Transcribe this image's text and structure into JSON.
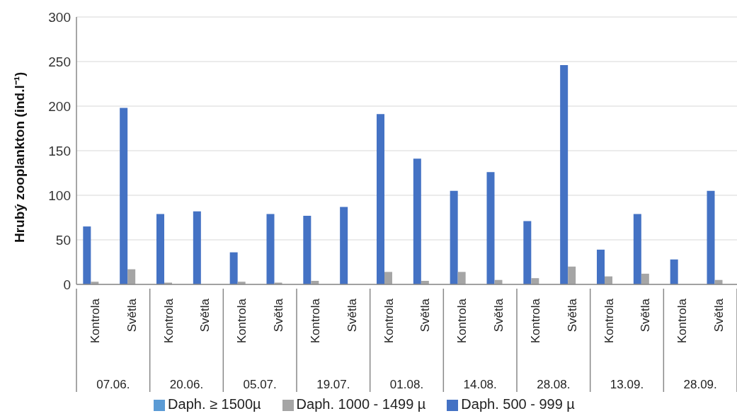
{
  "chart_data": {
    "type": "bar",
    "ylabel": "Hrubý zooplankton (ind.l⁻¹)",
    "categories": [
      "Kontrola",
      "Světla",
      "Kontrola",
      "Světla",
      "Kontrola",
      "Světla",
      "Kontrola",
      "Světla",
      "Kontrola",
      "Světla",
      "Kontrola",
      "Světla",
      "Kontrola",
      "Světla",
      "Kontrola",
      "Světla",
      "Kontrola",
      "Světla"
    ],
    "annotations": [
      "07.06.",
      "20.06.",
      "05.07.",
      "19.07.",
      "01.08.",
      "14.08.",
      "28.08.",
      "13.09.",
      "28.09."
    ],
    "series": [
      {
        "name": "Daph. 500 - 999 µ",
        "color": "#4472c4",
        "values": [
          65,
          198,
          79,
          82,
          36,
          79,
          77,
          87,
          191,
          141,
          105,
          126,
          71,
          246,
          39,
          79,
          28,
          105
        ]
      },
      {
        "name": "Daph. 1000 - 1499 µ",
        "color": "#a5a5a5",
        "values": [
          3,
          17,
          2,
          0,
          3,
          2,
          4,
          0,
          14,
          4,
          14,
          5,
          7,
          20,
          9,
          12,
          0,
          5
        ]
      },
      {
        "name": "Daph.  ≥ 1500µ",
        "color": "#5b9bd5",
        "values": [
          0,
          0,
          0,
          0,
          0,
          0,
          0,
          0,
          0,
          0,
          0,
          0,
          0,
          0,
          0,
          0,
          0,
          0
        ]
      }
    ],
    "ylim": [
      0,
      300
    ],
    "yticks": [
      0,
      50,
      100,
      150,
      200,
      250,
      300
    ],
    "grid": "y",
    "legend": "bottom"
  }
}
